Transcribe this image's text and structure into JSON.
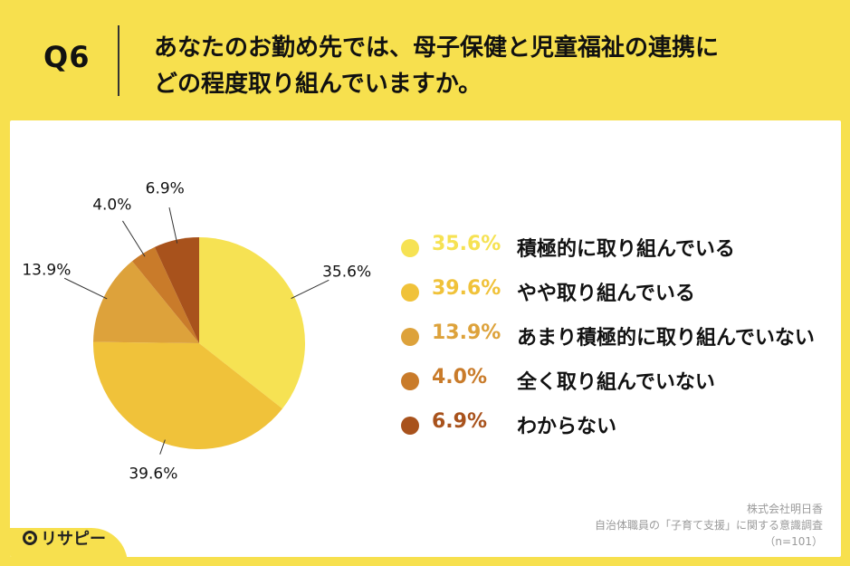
{
  "header": {
    "q_label": "Q6",
    "question_line1": "あなたのお勤め先では、母子保健と児童福祉の連携に",
    "question_line2": "どの程度取り組んでいますか。"
  },
  "chart_data": {
    "type": "pie",
    "categories": [
      "積極的に取り組んでいる",
      "やや取り組んでいる",
      "あまり積極的に取り組んでいない",
      "全く取り組んでいない",
      "わからない"
    ],
    "values": [
      35.6,
      39.6,
      13.9,
      4.0,
      6.9
    ],
    "value_labels": [
      "35.6%",
      "39.6%",
      "13.9%",
      "4.0%",
      "6.9%"
    ],
    "colors": [
      "#f6e253",
      "#f0c23a",
      "#dda23b",
      "#c97b2a",
      "#a8521c"
    ],
    "legend_position": "right",
    "start_angle": "top",
    "direction": "clockwise"
  },
  "footer": {
    "source_line1": "株式会社明日香",
    "source_line2": "自治体職員の「子育て支援」に関する意識調査",
    "source_line3": "（n=101）",
    "logo_text": "リサピー"
  }
}
